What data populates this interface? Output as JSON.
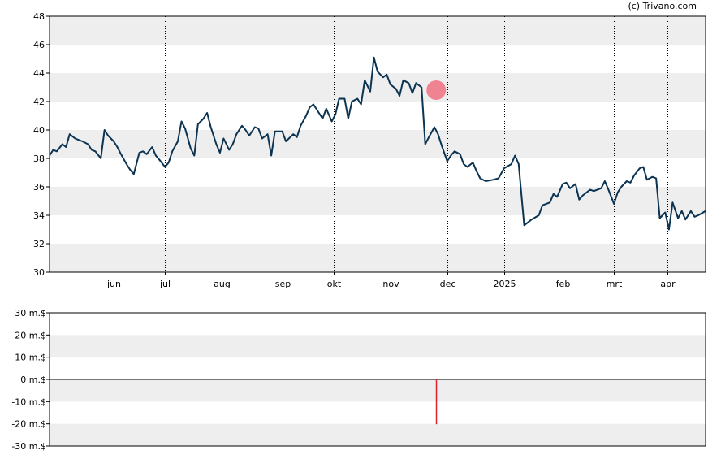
{
  "credit": "(c) Trivano.com",
  "chart_data": [
    {
      "type": "line",
      "title": "",
      "xlabel": "",
      "ylabel": "",
      "ylim": [
        30,
        48
      ],
      "yticks": [
        30,
        32,
        34,
        36,
        38,
        40,
        42,
        44,
        46,
        48
      ],
      "xticks": [
        {
          "label": "jun",
          "date": "2024-06-03"
        },
        {
          "label": "jul",
          "date": "2024-07-01"
        },
        {
          "label": "aug",
          "date": "2024-08-01"
        },
        {
          "label": "sep",
          "date": "2024-09-03"
        },
        {
          "label": "okt",
          "date": "2024-10-01"
        },
        {
          "label": "nov",
          "date": "2024-11-01"
        },
        {
          "label": "dec",
          "date": "2024-12-02"
        },
        {
          "label": "2025",
          "date": "2025-01-02"
        },
        {
          "label": "feb",
          "date": "2025-02-03"
        },
        {
          "label": "mrt",
          "date": "2025-03-03"
        },
        {
          "label": "apr",
          "date": "2025-04-01"
        }
      ],
      "xlim": [
        "2024-04-29",
        "2025-04-22"
      ],
      "grid": true,
      "line_color": "#0b3352",
      "marker": {
        "date": "2024-11-26",
        "value": 42.8,
        "color": "#f07080"
      },
      "series": [
        {
          "x": [
            "2024-04-29",
            "2024-05-01",
            "2024-05-03",
            "2024-05-06",
            "2024-05-08",
            "2024-05-10",
            "2024-05-13",
            "2024-05-15",
            "2024-05-17",
            "2024-05-20",
            "2024-05-22",
            "2024-05-24",
            "2024-05-27",
            "2024-05-29",
            "2024-05-31",
            "2024-06-03",
            "2024-06-05",
            "2024-06-07",
            "2024-06-10",
            "2024-06-12",
            "2024-06-14",
            "2024-06-17",
            "2024-06-19",
            "2024-06-21",
            "2024-06-24",
            "2024-06-26",
            "2024-06-28",
            "2024-07-01",
            "2024-07-03",
            "2024-07-05",
            "2024-07-08",
            "2024-07-10",
            "2024-07-12",
            "2024-07-15",
            "2024-07-17",
            "2024-07-19",
            "2024-07-22",
            "2024-07-24",
            "2024-07-26",
            "2024-07-29",
            "2024-07-31",
            "2024-08-02",
            "2024-08-05",
            "2024-08-07",
            "2024-08-09",
            "2024-08-12",
            "2024-08-14",
            "2024-08-16",
            "2024-08-19",
            "2024-08-21",
            "2024-08-23",
            "2024-08-26",
            "2024-08-28",
            "2024-08-30",
            "2024-09-03",
            "2024-09-05",
            "2024-09-09",
            "2024-09-11",
            "2024-09-13",
            "2024-09-16",
            "2024-09-18",
            "2024-09-20",
            "2024-09-23",
            "2024-09-25",
            "2024-09-27",
            "2024-09-30",
            "2024-10-02",
            "2024-10-04",
            "2024-10-07",
            "2024-10-09",
            "2024-10-11",
            "2024-10-14",
            "2024-10-16",
            "2024-10-18",
            "2024-10-21",
            "2024-10-23",
            "2024-10-25",
            "2024-10-28",
            "2024-10-30",
            "2024-11-01",
            "2024-11-04",
            "2024-11-06",
            "2024-11-08",
            "2024-11-11",
            "2024-11-13",
            "2024-11-15",
            "2024-11-18",
            "2024-11-20",
            "2024-11-22",
            "2024-11-25",
            "2024-11-27",
            "2024-11-29",
            "2024-12-02",
            "2024-12-04",
            "2024-12-06",
            "2024-12-09",
            "2024-12-11",
            "2024-12-13",
            "2024-12-16",
            "2024-12-18",
            "2024-12-20",
            "2024-12-23",
            "2024-12-27",
            "2024-12-30",
            "2025-01-02",
            "2025-01-06",
            "2025-01-08",
            "2025-01-10",
            "2025-01-13",
            "2025-01-15",
            "2025-01-17",
            "2025-01-21",
            "2025-01-23",
            "2025-01-27",
            "2025-01-29",
            "2025-01-31",
            "2025-02-03",
            "2025-02-05",
            "2025-02-07",
            "2025-02-10",
            "2025-02-12",
            "2025-02-14",
            "2025-02-18",
            "2025-02-20",
            "2025-02-24",
            "2025-02-26",
            "2025-02-28",
            "2025-03-03",
            "2025-03-05",
            "2025-03-07",
            "2025-03-10",
            "2025-03-12",
            "2025-03-14",
            "2025-03-17",
            "2025-03-19",
            "2025-03-21",
            "2025-03-24",
            "2025-03-26",
            "2025-03-28",
            "2025-03-31",
            "2025-04-02",
            "2025-04-04",
            "2025-04-07",
            "2025-04-09",
            "2025-04-11",
            "2025-04-14",
            "2025-04-16",
            "2025-04-18",
            "2025-04-22"
          ],
          "values": [
            38.2,
            38.6,
            38.5,
            39.0,
            38.8,
            39.7,
            39.4,
            39.3,
            39.2,
            39.0,
            38.6,
            38.5,
            38.0,
            40.0,
            39.6,
            39.2,
            38.8,
            38.3,
            37.6,
            37.2,
            36.9,
            38.4,
            38.5,
            38.3,
            38.8,
            38.2,
            37.9,
            37.4,
            37.7,
            38.5,
            39.2,
            40.6,
            40.1,
            38.7,
            38.2,
            40.4,
            40.8,
            41.2,
            40.2,
            39.0,
            38.4,
            39.4,
            38.6,
            39.0,
            39.7,
            40.3,
            40.0,
            39.6,
            40.2,
            40.1,
            39.4,
            39.7,
            38.2,
            39.9,
            39.9,
            39.2,
            39.7,
            39.5,
            40.3,
            41.0,
            41.6,
            41.8,
            41.2,
            40.8,
            41.5,
            40.6,
            41.1,
            42.2,
            42.2,
            40.8,
            42.0,
            42.2,
            41.8,
            43.5,
            42.7,
            45.1,
            44.1,
            43.7,
            43.9,
            43.2,
            42.9,
            42.4,
            43.5,
            43.3,
            42.6,
            43.3,
            43.0,
            39.0,
            39.5,
            40.2,
            39.7,
            38.9,
            37.8,
            38.2,
            38.5,
            38.3,
            37.6,
            37.4,
            37.7,
            37.1,
            36.6,
            36.4,
            36.5,
            36.6,
            37.3,
            37.6,
            38.2,
            37.6,
            33.3,
            33.5,
            33.7,
            34.0,
            34.7,
            34.9,
            35.5,
            35.3,
            36.2,
            36.3,
            35.9,
            36.2,
            35.1,
            35.4,
            35.8,
            35.7,
            35.9,
            36.4,
            35.8,
            34.8,
            35.6,
            36.0,
            36.4,
            36.3,
            36.8,
            37.3,
            37.4,
            36.5,
            36.7,
            36.6,
            33.8,
            34.2,
            33.0,
            34.9,
            33.8,
            34.3,
            33.7,
            34.3,
            33.9,
            34.0,
            34.3
          ]
        }
      ]
    },
    {
      "type": "bar",
      "title": "",
      "xlabel": "",
      "ylabel": "",
      "ylim": [
        -30,
        30
      ],
      "yticks": [
        {
          "value": 30,
          "label": "30 m.$"
        },
        {
          "value": 20,
          "label": "20 m.$"
        },
        {
          "value": 10,
          "label": "10 m.$"
        },
        {
          "value": 0,
          "label": "0 m.$"
        },
        {
          "value": -10,
          "label": "-10 m.$"
        },
        {
          "value": -20,
          "label": "-20 m.$"
        },
        {
          "value": -30,
          "label": "-30 m.$"
        }
      ],
      "grid": true,
      "bar_color": "#e0202c",
      "bars": [
        {
          "date": "2024-11-22",
          "value": -0.3
        },
        {
          "date": "2024-11-26",
          "value": -20.2
        }
      ]
    }
  ]
}
